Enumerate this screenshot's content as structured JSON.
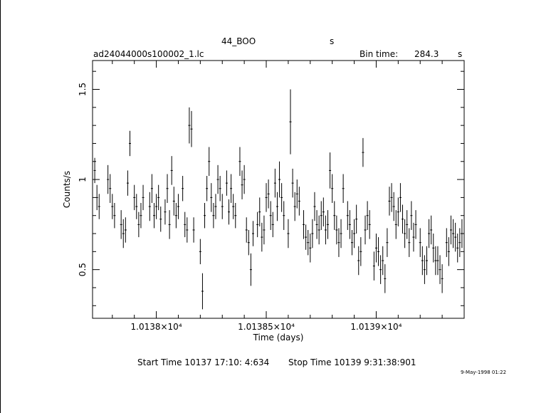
{
  "header": {
    "object": "44_BOO",
    "unit_top": "s",
    "file": "ad24044000s100002_1.lc",
    "bin_label": "Bin time:",
    "bin_value": "284.3",
    "bin_unit": "s"
  },
  "footer": {
    "start_time": "Start Time 10137 17:10: 4:634",
    "stop_time": "Stop Time 10139  9:31:38:901",
    "stamp": "9-May-1998 01:22"
  },
  "chart_data": {
    "type": "scatter",
    "title": "44_BOO",
    "xlabel": "Time (days)",
    "ylabel": "Counts/s",
    "xlim": [
      10137.71,
      10139.4
    ],
    "ylim": [
      0.23,
      1.66
    ],
    "x_ticks": [
      {
        "value": 10138.0,
        "label": "1.0138×10⁴"
      },
      {
        "value": 10138.5,
        "label": "1.01385×10⁴"
      },
      {
        "value": 10139.0,
        "label": "1.0139×10⁴"
      }
    ],
    "y_ticks": [
      {
        "value": 0.5,
        "label": "0.5"
      },
      {
        "value": 1.0,
        "label": "1"
      },
      {
        "value": 1.5,
        "label": "1.5"
      }
    ],
    "grid": false,
    "series": [
      {
        "x": [
          10137.72,
          10137.73,
          10137.74,
          10137.78,
          10137.79,
          10137.8,
          10137.81,
          10137.84,
          10137.85,
          10137.86,
          10137.87,
          10137.88,
          10137.9,
          10137.91,
          10137.92,
          10137.93,
          10137.94,
          10137.97,
          10137.98,
          10137.99,
          10138.0,
          10138.01,
          10138.02,
          10138.04,
          10138.05,
          10138.06,
          10138.07,
          10138.08,
          10138.09,
          10138.1,
          10138.12,
          10138.13,
          10138.14,
          10138.15,
          10138.16,
          10138.17,
          10138.2,
          10138.21,
          10138.22,
          10138.23,
          10138.24,
          10138.25,
          10138.26,
          10138.27,
          10138.28,
          10138.29,
          10138.3,
          10138.32,
          10138.33,
          10138.34,
          10138.35,
          10138.36,
          10138.38,
          10138.39,
          10138.4,
          10138.41,
          10138.42,
          10138.43,
          10138.44,
          10138.46,
          10138.47,
          10138.48,
          10138.49,
          10138.5,
          10138.51,
          10138.52,
          10138.53,
          10138.54,
          10138.55,
          10138.56,
          10138.57,
          10138.58,
          10138.6,
          10138.61,
          10138.62,
          10138.63,
          10138.64,
          10138.65,
          10138.67,
          10138.68,
          10138.69,
          10138.7,
          10138.71,
          10138.72,
          10138.73,
          10138.74,
          10138.75,
          10138.76,
          10138.77,
          10138.78,
          10138.79,
          10138.8,
          10138.81,
          10138.82,
          10138.83,
          10138.84,
          10138.85,
          10138.87,
          10138.88,
          10138.89,
          10138.9,
          10138.91,
          10138.92,
          10138.93,
          10138.94,
          10138.95,
          10138.96,
          10138.97,
          10138.99,
          10139.0,
          10139.01,
          10139.02,
          10139.03,
          10139.04,
          10139.05,
          10139.06,
          10139.07,
          10139.08,
          10139.09,
          10139.1,
          10139.11,
          10139.12,
          10139.13,
          10139.14,
          10139.15,
          10139.16,
          10139.17,
          10139.18,
          10139.2,
          10139.21,
          10139.22,
          10139.23,
          10139.24,
          10139.25,
          10139.26,
          10139.27,
          10139.28,
          10139.29,
          10139.3,
          10139.32,
          10139.33,
          10139.34,
          10139.35,
          10139.36,
          10139.37,
          10139.38,
          10139.39
        ],
        "y": [
          1.05,
          0.9,
          0.85,
          1.0,
          0.95,
          0.85,
          0.8,
          0.75,
          0.7,
          0.72,
          0.98,
          1.2,
          0.9,
          0.85,
          0.75,
          0.8,
          0.9,
          0.85,
          0.95,
          0.8,
          0.85,
          0.9,
          0.78,
          0.82,
          0.95,
          0.75,
          1.05,
          0.88,
          0.8,
          0.85,
          0.95,
          0.75,
          0.72,
          1.3,
          1.28,
          0.72,
          0.6,
          0.38,
          0.8,
          0.95,
          1.1,
          0.9,
          0.8,
          0.85,
          1.0,
          0.95,
          0.85,
          0.98,
          0.82,
          0.95,
          0.85,
          0.8,
          1.1,
          0.97,
          1.0,
          0.72,
          0.65,
          0.5,
          0.7,
          0.75,
          0.82,
          0.68,
          0.72,
          0.9,
          0.92,
          0.8,
          0.75,
          0.98,
          0.85,
          1.0,
          0.9,
          0.8,
          0.7,
          1.32,
          0.98,
          0.85,
          0.92,
          0.88,
          0.75,
          0.68,
          0.65,
          0.62,
          0.7,
          0.85,
          0.75,
          0.72,
          0.8,
          0.82,
          0.72,
          0.75,
          1.05,
          0.95,
          0.8,
          0.72,
          0.65,
          0.7,
          0.95,
          0.8,
          0.75,
          0.65,
          0.7,
          0.78,
          0.55,
          0.6,
          1.15,
          0.72,
          0.8,
          0.75,
          0.52,
          0.62,
          0.6,
          0.5,
          0.55,
          0.45,
          0.65,
          0.88,
          0.9,
          0.85,
          0.75,
          0.82,
          0.9,
          0.78,
          0.7,
          0.75,
          0.65,
          0.8,
          0.68,
          0.75,
          0.65,
          0.55,
          0.5,
          0.55,
          0.7,
          0.72,
          0.62,
          0.55,
          0.55,
          0.5,
          0.45,
          0.65,
          0.6,
          0.72,
          0.7,
          0.68,
          0.62,
          0.65,
          0.7
        ],
        "err": [
          0.07,
          0.07,
          0.07,
          0.08,
          0.08,
          0.07,
          0.07,
          0.08,
          0.08,
          0.07,
          0.07,
          0.07,
          0.07,
          0.07,
          0.07,
          0.07,
          0.07,
          0.08,
          0.08,
          0.07,
          0.07,
          0.07,
          0.07,
          0.07,
          0.08,
          0.08,
          0.08,
          0.08,
          0.07,
          0.07,
          0.07,
          0.07,
          0.07,
          0.1,
          0.1,
          0.07,
          0.07,
          0.1,
          0.07,
          0.07,
          0.08,
          0.08,
          0.07,
          0.07,
          0.08,
          0.07,
          0.07,
          0.07,
          0.07,
          0.08,
          0.07,
          0.07,
          0.08,
          0.08,
          0.08,
          0.07,
          0.07,
          0.09,
          0.07,
          0.07,
          0.08,
          0.08,
          0.08,
          0.08,
          0.08,
          0.08,
          0.07,
          0.08,
          0.08,
          0.1,
          0.08,
          0.08,
          0.08,
          0.18,
          0.08,
          0.08,
          0.08,
          0.08,
          0.08,
          0.07,
          0.07,
          0.08,
          0.08,
          0.08,
          0.08,
          0.08,
          0.08,
          0.08,
          0.08,
          0.08,
          0.1,
          0.08,
          0.08,
          0.08,
          0.08,
          0.08,
          0.08,
          0.08,
          0.08,
          0.07,
          0.08,
          0.08,
          0.08,
          0.08,
          0.08,
          0.08,
          0.08,
          0.08,
          0.08,
          0.08,
          0.08,
          0.08,
          0.08,
          0.08,
          0.08,
          0.08,
          0.08,
          0.08,
          0.08,
          0.08,
          0.08,
          0.08,
          0.08,
          0.08,
          0.08,
          0.08,
          0.08,
          0.08,
          0.08,
          0.08,
          0.08,
          0.08,
          0.08,
          0.08,
          0.08,
          0.08,
          0.08,
          0.08,
          0.08,
          0.08,
          0.08,
          0.08,
          0.08,
          0.08,
          0.08,
          0.08,
          0.08
        ]
      }
    ]
  }
}
